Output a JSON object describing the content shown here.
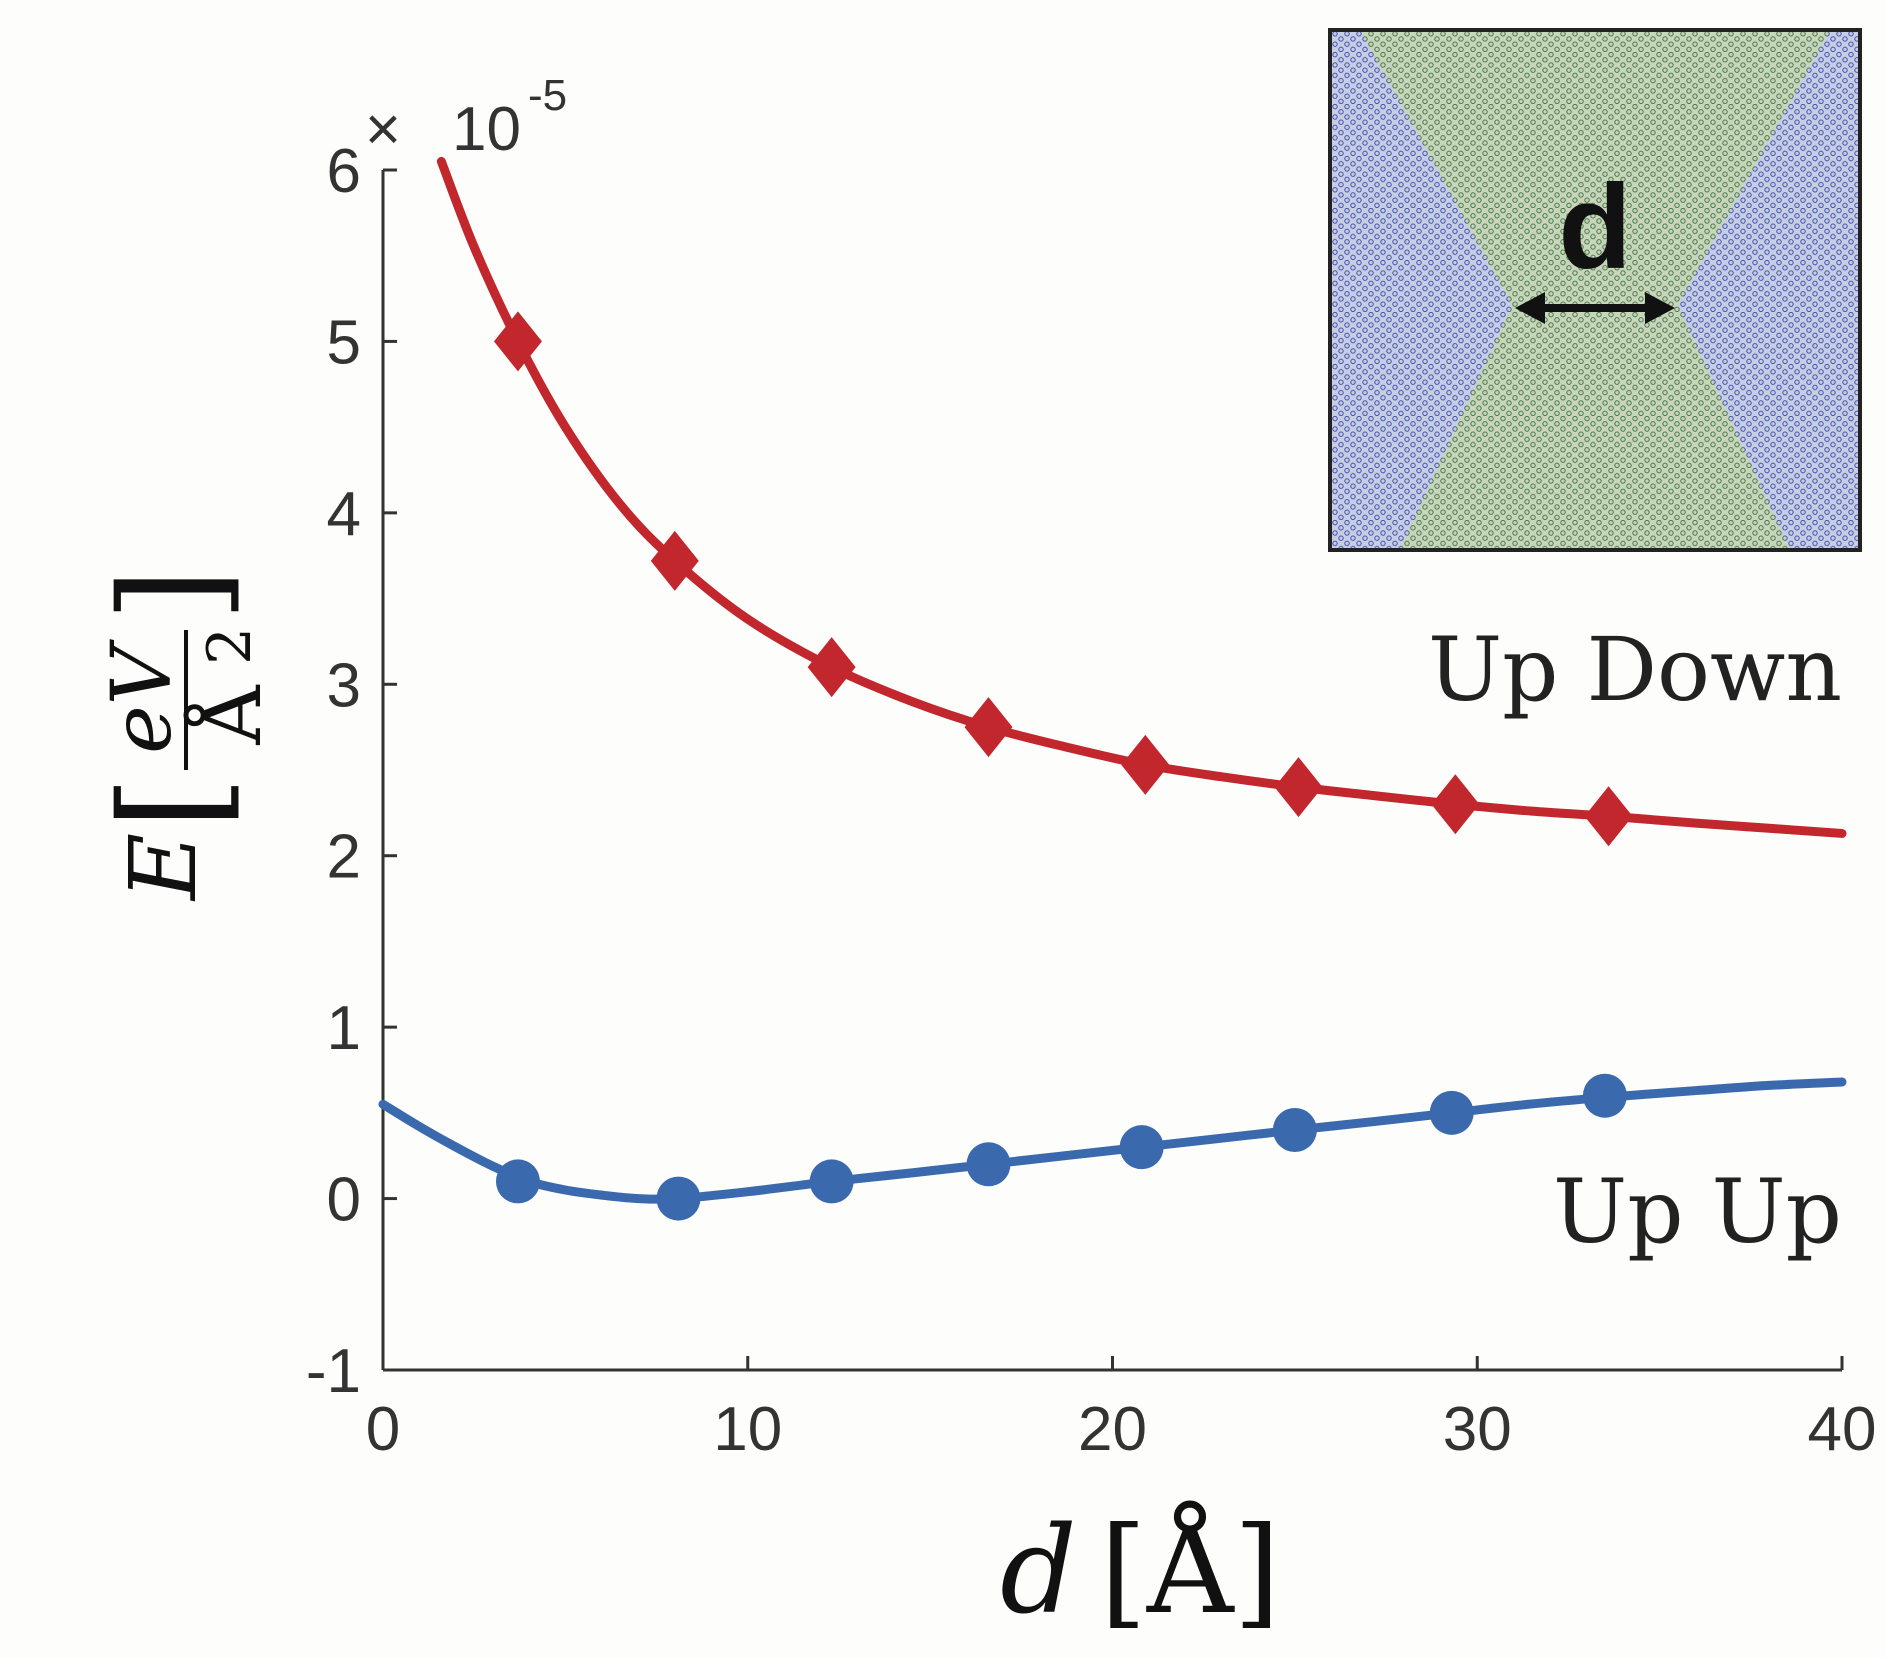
{
  "chart_data": {
    "type": "line",
    "xlabel": {
      "var": "d",
      "unit": "[Å]"
    },
    "ylabel": {
      "var": "E",
      "num": "eV",
      "den": "Å",
      "den_exp": "2"
    },
    "multiplier": {
      "symbol": "×",
      "base": "10",
      "exp": "-5"
    },
    "xlim": [
      0,
      40
    ],
    "ylim": [
      -1,
      6
    ],
    "xticks": [
      "0",
      "10",
      "20",
      "30",
      "40"
    ],
    "yticks": [
      "-1",
      "0",
      "1",
      "2",
      "3",
      "4",
      "5",
      "6"
    ],
    "grid": false,
    "series": [
      {
        "name": "Up Down",
        "color": "#c1272d",
        "marker": "diamond",
        "points": [
          {
            "x": 3.7,
            "y": 5.0
          },
          {
            "x": 8.0,
            "y": 3.72
          },
          {
            "x": 12.3,
            "y": 3.1
          },
          {
            "x": 16.6,
            "y": 2.75
          },
          {
            "x": 20.9,
            "y": 2.53
          },
          {
            "x": 25.1,
            "y": 2.4
          },
          {
            "x": 29.4,
            "y": 2.3
          },
          {
            "x": 33.6,
            "y": 2.23
          }
        ],
        "fit": [
          {
            "x": 1.6,
            "y": 6.05
          },
          {
            "x": 2.5,
            "y": 5.55
          },
          {
            "x": 3.7,
            "y": 5.0
          },
          {
            "x": 5.0,
            "y": 4.5
          },
          {
            "x": 6.5,
            "y": 4.05
          },
          {
            "x": 8.0,
            "y": 3.72
          },
          {
            "x": 10.0,
            "y": 3.38
          },
          {
            "x": 12.3,
            "y": 3.1
          },
          {
            "x": 14.5,
            "y": 2.9
          },
          {
            "x": 16.6,
            "y": 2.75
          },
          {
            "x": 18.8,
            "y": 2.63
          },
          {
            "x": 20.9,
            "y": 2.53
          },
          {
            "x": 23.0,
            "y": 2.46
          },
          {
            "x": 25.1,
            "y": 2.4
          },
          {
            "x": 27.2,
            "y": 2.35
          },
          {
            "x": 29.4,
            "y": 2.3
          },
          {
            "x": 31.5,
            "y": 2.26
          },
          {
            "x": 33.6,
            "y": 2.23
          },
          {
            "x": 36.0,
            "y": 2.19
          },
          {
            "x": 38.0,
            "y": 2.16
          },
          {
            "x": 40.0,
            "y": 2.13
          }
        ]
      },
      {
        "name": "Up Up",
        "color": "#3a6aad",
        "marker": "circle",
        "points": [
          {
            "x": 3.7,
            "y": 0.1
          },
          {
            "x": 8.1,
            "y": 0.0
          },
          {
            "x": 12.3,
            "y": 0.1
          },
          {
            "x": 16.6,
            "y": 0.2
          },
          {
            "x": 20.8,
            "y": 0.3
          },
          {
            "x": 25.0,
            "y": 0.4
          },
          {
            "x": 29.3,
            "y": 0.5
          },
          {
            "x": 33.5,
            "y": 0.6
          }
        ],
        "fit": [
          {
            "x": 0.0,
            "y": 0.55
          },
          {
            "x": 1.0,
            "y": 0.42
          },
          {
            "x": 2.0,
            "y": 0.3
          },
          {
            "x": 3.0,
            "y": 0.19
          },
          {
            "x": 4.0,
            "y": 0.1
          },
          {
            "x": 5.0,
            "y": 0.05
          },
          {
            "x": 6.0,
            "y": 0.02
          },
          {
            "x": 7.0,
            "y": 0.0
          },
          {
            "x": 8.1,
            "y": 0.0
          },
          {
            "x": 10.0,
            "y": 0.04
          },
          {
            "x": 12.3,
            "y": 0.1
          },
          {
            "x": 14.5,
            "y": 0.15
          },
          {
            "x": 16.6,
            "y": 0.2
          },
          {
            "x": 18.7,
            "y": 0.25
          },
          {
            "x": 20.8,
            "y": 0.3
          },
          {
            "x": 22.9,
            "y": 0.35
          },
          {
            "x": 25.0,
            "y": 0.4
          },
          {
            "x": 27.2,
            "y": 0.45
          },
          {
            "x": 29.3,
            "y": 0.5
          },
          {
            "x": 31.4,
            "y": 0.55
          },
          {
            "x": 33.5,
            "y": 0.59
          },
          {
            "x": 36.0,
            "y": 0.63
          },
          {
            "x": 38.0,
            "y": 0.66
          },
          {
            "x": 40.0,
            "y": 0.68
          }
        ]
      }
    ],
    "inset": {
      "label": "d",
      "colors": {
        "outer": "#3b4fa8",
        "inner": "#3f7a3f",
        "bg": "#d6dcc6"
      }
    }
  }
}
